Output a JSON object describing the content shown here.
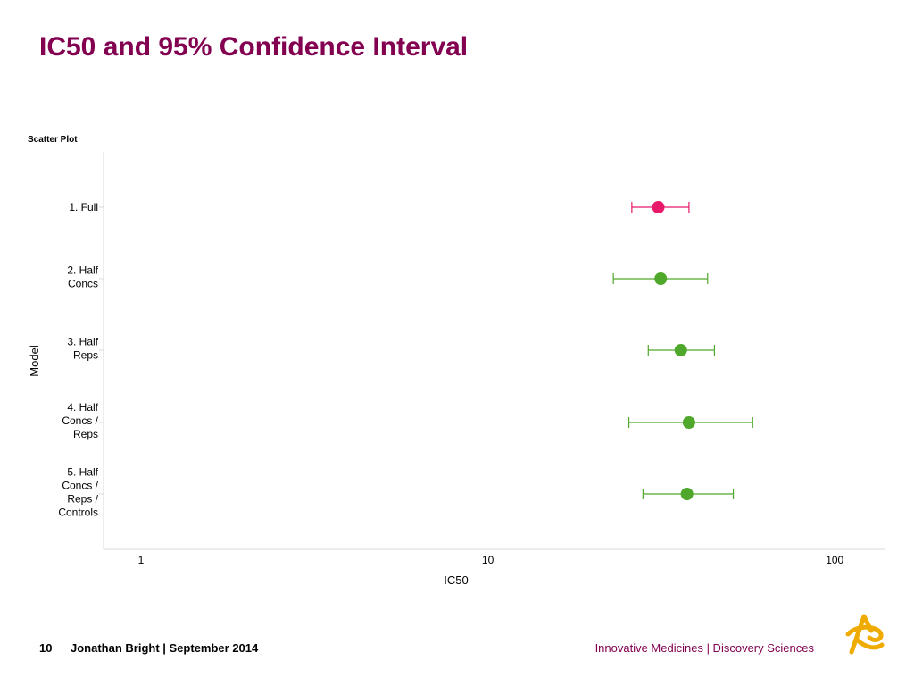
{
  "slide": {
    "title": "IC50 and 95% Confidence Interval",
    "page_number": "10",
    "author_line": "Jonathan Bright | September 2014",
    "tagline": "Innovative Medicines | Discovery Sciences"
  },
  "chart_data": {
    "type": "scatter",
    "panel_title": "Scatter Plot",
    "xlabel": "IC50",
    "ylabel": "Model",
    "x_scale": "log",
    "xlim": [
      0.78,
      140
    ],
    "x_ticks": [
      1,
      10,
      100
    ],
    "x_tick_labels": [
      "1",
      "10",
      "100"
    ],
    "grid": false,
    "points": [
      {
        "label": [
          "1. Full"
        ],
        "ic50": 31,
        "ci_low": 26,
        "ci_high": 38,
        "color": "#e8196b"
      },
      {
        "label": [
          "2. Half",
          "Concs"
        ],
        "ic50": 31.5,
        "ci_low": 23,
        "ci_high": 43,
        "color": "#4fa82b"
      },
      {
        "label": [
          "3. Half",
          "Reps"
        ],
        "ic50": 36,
        "ci_low": 29,
        "ci_high": 45,
        "color": "#4fa82b"
      },
      {
        "label": [
          "4. Half",
          "Concs /",
          "Reps"
        ],
        "ic50": 38,
        "ci_low": 25.5,
        "ci_high": 58,
        "color": "#4fa82b"
      },
      {
        "label": [
          "5. Half",
          "Concs /",
          "Reps /",
          "Controls"
        ],
        "ic50": 37.5,
        "ci_low": 28,
        "ci_high": 51,
        "color": "#4fa82b"
      }
    ],
    "point_color_default": "#4fa82b",
    "point_color_highlight": "#e8196b"
  },
  "colors": {
    "brand": "#830051",
    "logo": "#f0ab00"
  },
  "icons": {
    "logo": "astrazeneca-logo-icon"
  }
}
